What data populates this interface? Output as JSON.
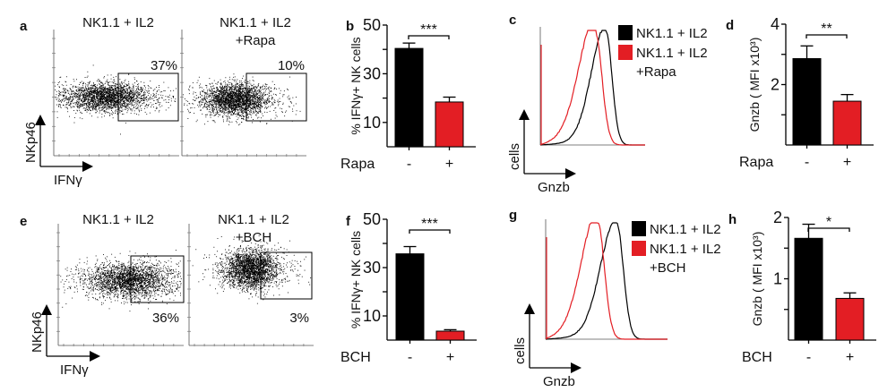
{
  "colors": {
    "control": "#000000",
    "treated": "#e31e24"
  },
  "chart_data": [
    {
      "panel": "a",
      "type": "scatter",
      "titles": [
        "NK1.1 + IL2",
        "NK1.1 + IL2\n+Rapa"
      ],
      "gate_percent": [
        "37%",
        "10%"
      ],
      "xlabel": "IFNγ",
      "ylabel": "NKp46"
    },
    {
      "panel": "b",
      "type": "bar",
      "categories": [
        "-",
        "+"
      ],
      "xlabel": "Rapa",
      "ylabel": "% IFNγ+ NK cells",
      "values": [
        40.4,
        18.4
      ],
      "errors": [
        2.2,
        2.0
      ],
      "ylim": [
        0,
        50
      ],
      "yticks": [
        10,
        30,
        50
      ],
      "significance": "***"
    },
    {
      "panel": "c",
      "type": "line",
      "legend": [
        "NK1.1 + IL2",
        "NK1.1 + IL2\n+Rapa"
      ],
      "xlabel": "Gnzb",
      "ylabel": "cells"
    },
    {
      "panel": "d",
      "type": "bar",
      "categories": [
        "-",
        "+"
      ],
      "xlabel": "Rapa",
      "ylabel": "Gnzb ( MFI x10³)",
      "values": [
        2.86,
        1.45
      ],
      "errors": [
        0.42,
        0.22
      ],
      "ylim": [
        0,
        4
      ],
      "yticks": [
        2,
        4
      ],
      "significance": "**"
    },
    {
      "panel": "e",
      "type": "scatter",
      "titles": [
        "NK1.1 + IL2",
        "NK1.1 + IL2\n+BCH"
      ],
      "gate_percent": [
        "36%",
        "3%"
      ],
      "xlabel": "IFNγ",
      "ylabel": "NKp46"
    },
    {
      "panel": "f",
      "type": "bar",
      "categories": [
        "-",
        "+"
      ],
      "xlabel": "BCH",
      "ylabel": "% IFNγ+ NK cells",
      "values": [
        35.7,
        3.7
      ],
      "errors": [
        3.0,
        0.6
      ],
      "ylim": [
        0,
        50
      ],
      "yticks": [
        10,
        30,
        50
      ],
      "significance": "***"
    },
    {
      "panel": "g",
      "type": "line",
      "legend": [
        "NK1.1 + IL2",
        "NK1.1 + IL2\n+BCH"
      ],
      "xlabel": "Gnzb",
      "ylabel": "cells"
    },
    {
      "panel": "h",
      "type": "bar",
      "categories": [
        "-",
        "+"
      ],
      "xlabel": "BCH",
      "ylabel": "Gnzb ( MFI x10³)",
      "values": [
        1.66,
        0.68
      ],
      "errors": [
        0.23,
        0.09
      ],
      "ylim": [
        0,
        2
      ],
      "yticks": [
        1,
        2
      ],
      "significance": "*"
    }
  ]
}
